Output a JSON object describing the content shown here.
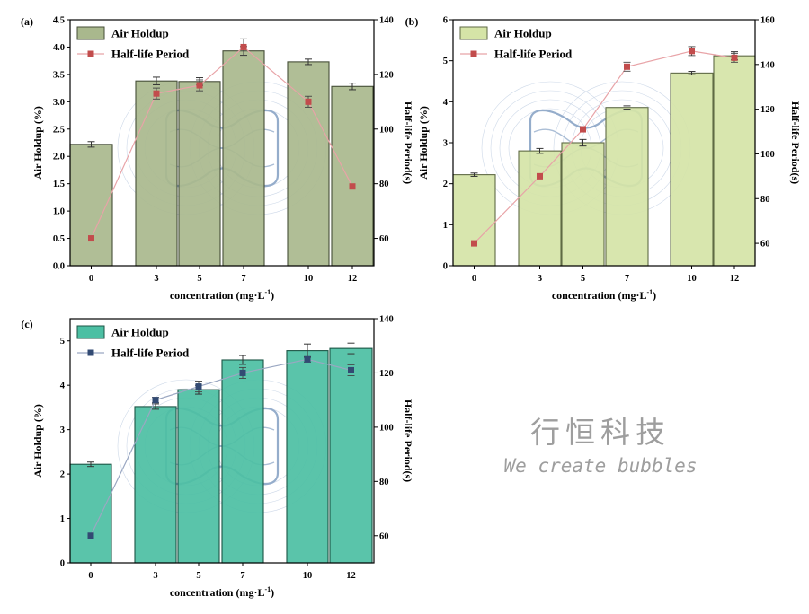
{
  "chart_data": [
    {
      "type": "bar",
      "panel_label": "(a)",
      "categories": [
        "0",
        "3",
        "5",
        "7",
        "10",
        "12"
      ],
      "xlabel": "concentration (mg·L",
      "xlabel_sup": "-1",
      "xlabel_end": ")",
      "ylabel_left": "Air Holdup (%)",
      "ylabel_right": "Half-life Period(s)",
      "ylim_left": [
        0,
        4.5
      ],
      "yticks_left": [
        "0.0",
        "0.5",
        "1.0",
        "1.5",
        "2.0",
        "2.5",
        "3.0",
        "3.5",
        "4.0",
        "4.5"
      ],
      "ylim_right": [
        50,
        140
      ],
      "yticks_right": [
        "60",
        "80",
        "100",
        "120",
        "140"
      ],
      "series": [
        {
          "name": "Air Holdup",
          "type": "bar",
          "axis": "left",
          "values": [
            2.22,
            3.38,
            3.37,
            3.93,
            3.73,
            3.28
          ],
          "errors": [
            0.05,
            0.07,
            0.07,
            0.08,
            0.05,
            0.06
          ]
        },
        {
          "name": "Half-life Period",
          "type": "line",
          "axis": "right",
          "values": [
            60,
            113,
            116,
            130,
            110,
            79
          ],
          "errors": [
            0,
            2,
            2,
            3,
            2,
            0
          ]
        }
      ],
      "colors": {
        "bar": "#a9b88d",
        "bar_edge": "#454e37",
        "marker": "#c24c4c",
        "line": "#e8a3a7"
      },
      "legend_position": "top-left"
    },
    {
      "type": "bar",
      "panel_label": "(b)",
      "categories": [
        "0",
        "3",
        "5",
        "7",
        "10",
        "12"
      ],
      "xlabel": "concentration (mg·L",
      "xlabel_sup": "-1",
      "xlabel_end": ")",
      "ylabel_left": "Air Holdup (%)",
      "ylabel_right": "Half-life Period(s)",
      "ylim_left": [
        0,
        6
      ],
      "yticks_left": [
        "0",
        "1",
        "2",
        "3",
        "4",
        "5",
        "6"
      ],
      "ylim_right": [
        50,
        160
      ],
      "yticks_right": [
        "60",
        "80",
        "100",
        "120",
        "140",
        "160"
      ],
      "series": [
        {
          "name": "Air Holdup",
          "type": "bar",
          "axis": "left",
          "values": [
            2.22,
            2.8,
            3.0,
            3.86,
            4.7,
            5.12
          ],
          "errors": [
            0.04,
            0.06,
            0.08,
            0.04,
            0.04,
            0.1
          ]
        },
        {
          "name": "Half-life Period",
          "type": "line",
          "axis": "right",
          "values": [
            60,
            90,
            111,
            139,
            146,
            143
          ],
          "errors": [
            0,
            0,
            0,
            2,
            2,
            2
          ]
        }
      ],
      "colors": {
        "bar": "#d5e4a7",
        "bar_edge": "#5f6a45",
        "marker": "#c24c4c",
        "line": "#e8a3a7"
      },
      "legend_position": "top-left"
    },
    {
      "type": "bar",
      "panel_label": "(c)",
      "categories": [
        "0",
        "3",
        "5",
        "7",
        "10",
        "12"
      ],
      "xlabel": "concentration (mg·L",
      "xlabel_sup": "-1",
      "xlabel_end": ")",
      "ylabel_left": "Air Holdup (%)",
      "ylabel_right": "Half-life Period(s)",
      "ylim_left": [
        0,
        5.5
      ],
      "yticks_left": [
        "0",
        "1",
        "2",
        "3",
        "4",
        "5"
      ],
      "ylim_right": [
        50,
        140
      ],
      "yticks_right": [
        "60",
        "80",
        "100",
        "120",
        "140"
      ],
      "series": [
        {
          "name": "Air Holdup",
          "type": "bar",
          "axis": "left",
          "values": [
            2.22,
            3.52,
            3.9,
            4.57,
            4.78,
            4.83
          ],
          "errors": [
            0.05,
            0.06,
            0.1,
            0.1,
            0.15,
            0.12
          ]
        },
        {
          "name": "Half-life Period",
          "type": "line",
          "axis": "right",
          "values": [
            60,
            110,
            115,
            120,
            125,
            121
          ],
          "errors": [
            0,
            1,
            2,
            2,
            1,
            2
          ]
        }
      ],
      "colors": {
        "bar": "#4cbfa3",
        "bar_edge": "#1b5545",
        "marker": "#324a73",
        "line": "#9aa7c2"
      },
      "legend_position": "top-left"
    }
  ],
  "watermark": {
    "title": "行恒科技",
    "subtitle": "We create bubbles",
    "color": "#9e9e9e"
  }
}
